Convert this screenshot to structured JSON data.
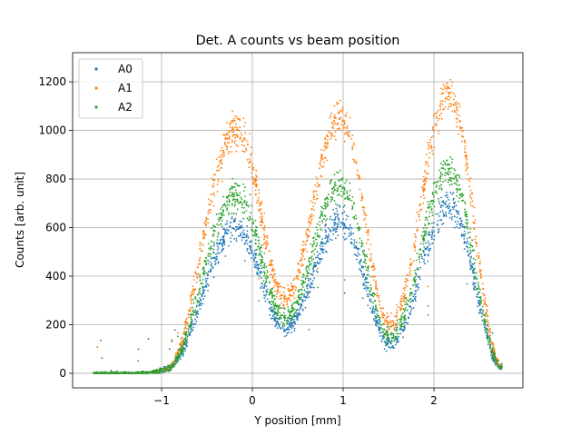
{
  "chart_data": {
    "type": "scatter",
    "title": "Det. A counts vs beam position",
    "xlabel": "Y position [mm]",
    "ylabel": "Counts [arb. unit]",
    "xlim": [
      -1.98,
      2.98
    ],
    "ylim": [
      -60,
      1320
    ],
    "xticks": [
      -1,
      0,
      1,
      2
    ],
    "xtick_labels": [
      "−1",
      "0",
      "1",
      "2"
    ],
    "yticks": [
      0,
      200,
      400,
      600,
      800,
      1000,
      1200
    ],
    "ytick_labels": [
      "0",
      "200",
      "400",
      "600",
      "800",
      "1000",
      "1200"
    ],
    "grid": true,
    "legend_position": "top-left",
    "x_range": [
      -1.75,
      2.75
    ],
    "series": [
      {
        "name": "A0",
        "color": "#1f77b4",
        "baseline": 0,
        "peaks": [
          {
            "x": -0.17,
            "y": 600
          },
          {
            "x": 0.97,
            "y": 630
          },
          {
            "x": 2.17,
            "y": 690
          }
        ],
        "valleys": [
          {
            "x": 0.36,
            "y": 185
          },
          {
            "x": 1.52,
            "y": 120
          }
        ]
      },
      {
        "name": "A1",
        "color": "#ff7f0e",
        "baseline": 0,
        "peaks": [
          {
            "x": -0.17,
            "y": 1010
          },
          {
            "x": 0.97,
            "y": 1060
          },
          {
            "x": 2.17,
            "y": 1140
          }
        ],
        "valleys": [
          {
            "x": 0.36,
            "y": 310
          },
          {
            "x": 1.52,
            "y": 200
          }
        ]
      },
      {
        "name": "A2",
        "color": "#2ca02c",
        "baseline": 0,
        "peaks": [
          {
            "x": -0.17,
            "y": 740
          },
          {
            "x": 0.97,
            "y": 780
          },
          {
            "x": 2.17,
            "y": 830
          }
        ],
        "valleys": [
          {
            "x": 0.36,
            "y": 230
          },
          {
            "x": 1.52,
            "y": 150
          }
        ]
      }
    ]
  }
}
